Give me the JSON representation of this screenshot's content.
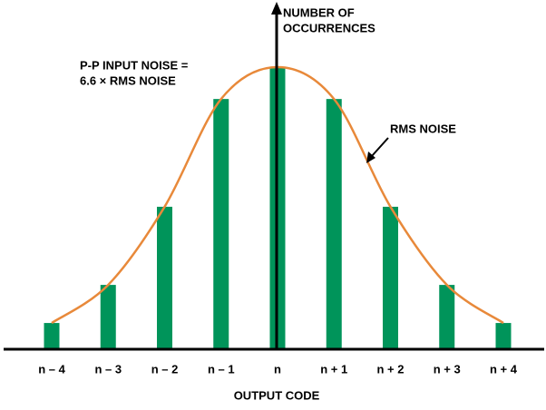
{
  "chart_data": {
    "type": "bar",
    "x_label": "OUTPUT CODE",
    "y_label": [
      "NUMBER OF",
      "OCCURRENCES"
    ],
    "categories": [
      "n – 4",
      "n – 3",
      "n – 2",
      "n – 1",
      "n",
      "n + 1",
      "n + 2",
      "n + 3",
      "n + 4"
    ],
    "values": [
      9.3,
      22.8,
      50.5,
      88.7,
      100,
      88.7,
      50.5,
      22.8,
      9.3
    ],
    "color": "#00945a",
    "curve_color": "#e8893a",
    "curve_label": "RMS NOISE",
    "annotation": [
      "P-P INPUT NOISE =",
      "6.6 × RMS NOISE"
    ],
    "ylim": [
      0,
      100
    ]
  }
}
